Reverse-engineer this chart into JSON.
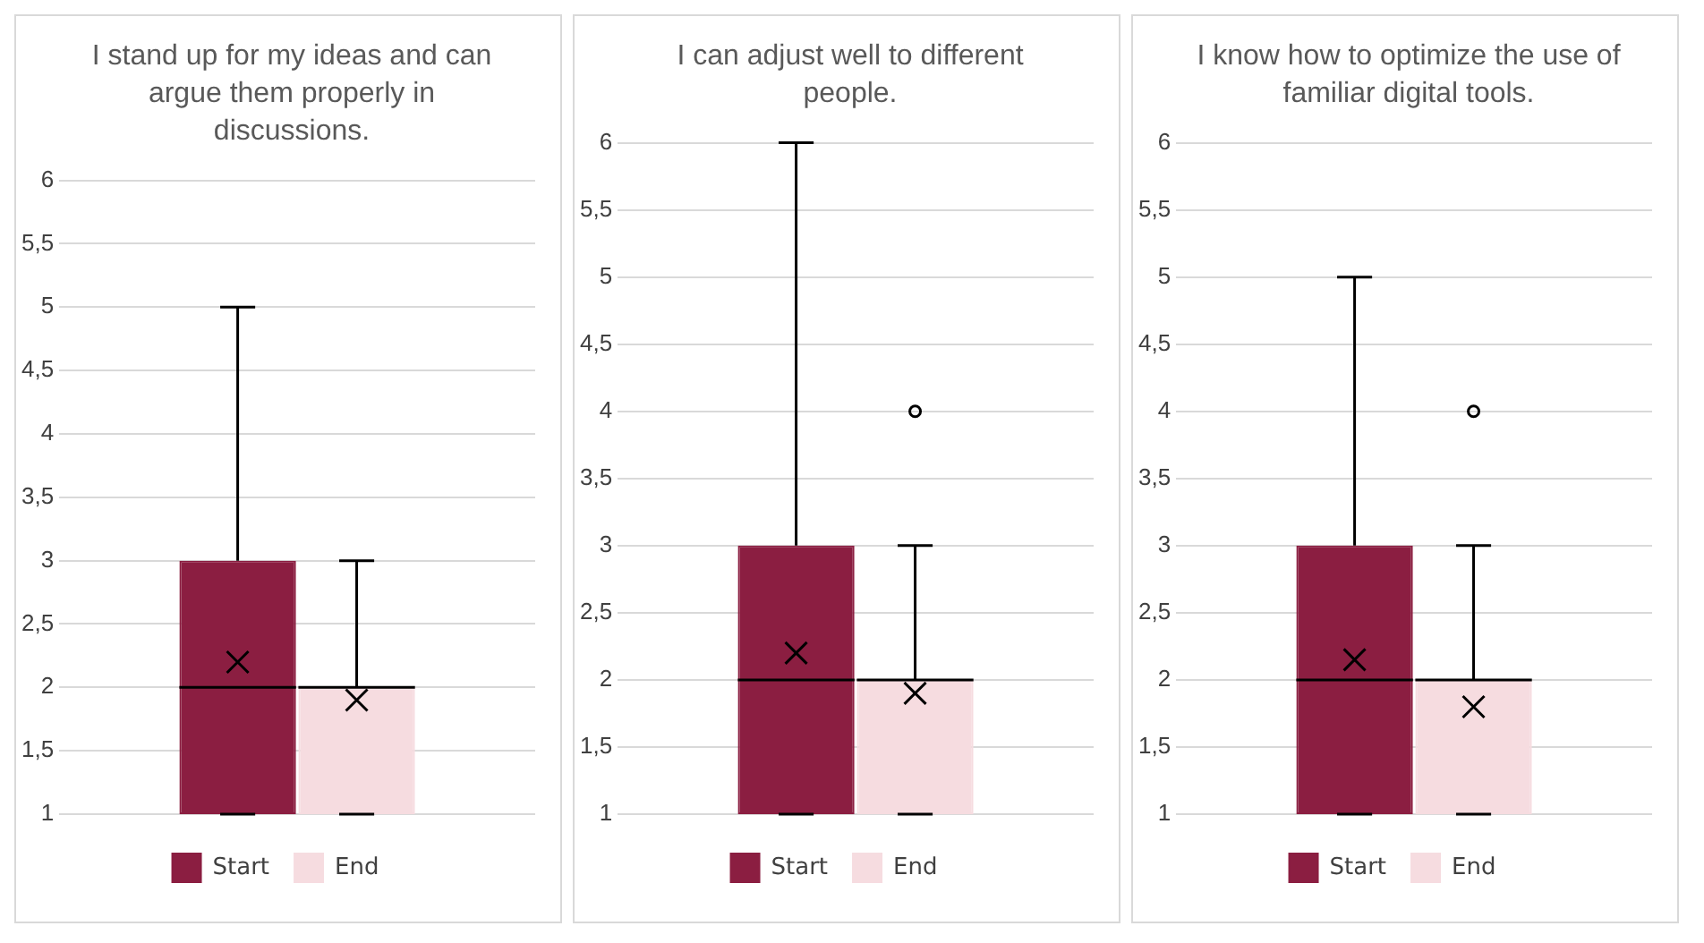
{
  "chart_data": [
    {
      "type": "box",
      "title": "I stand up for my ideas and can argue them properly in discussions.",
      "categories": [
        null
      ],
      "ylim": [
        1,
        6
      ],
      "yticks": [
        1,
        {
          "value": 1.5,
          "label": "1,5"
        },
        2,
        {
          "value": 2.5,
          "label": "2,5"
        },
        3,
        {
          "value": 3.5,
          "label": "3,5"
        },
        4,
        {
          "value": 4.5,
          "label": "4,5"
        },
        5,
        {
          "value": 5.5,
          "label": "5,5"
        },
        6
      ],
      "grid": "y",
      "legend": "bottom",
      "tick_labels": "y",
      "series": [
        {
          "name": "Start",
          "color": "#8b1e41",
          "boxes": [
            {
              "low": 1,
              "q1": 1,
              "median": 2,
              "q3": 3,
              "high": 5,
              "mean": 2.2
            }
          ]
        },
        {
          "name": "End",
          "color": "#f6dce0",
          "boxes": [
            {
              "low": 1,
              "q1": 1,
              "median": 2,
              "q3": 2,
              "high": 3,
              "mean": 1.9
            }
          ]
        }
      ]
    },
    {
      "type": "box",
      "title": "I can adjust well to different people.",
      "categories": [
        null
      ],
      "ylim": [
        1,
        6
      ],
      "yticks": [
        1,
        {
          "value": 1.5,
          "label": "1,5"
        },
        2,
        {
          "value": 2.5,
          "label": "2,5"
        },
        3,
        {
          "value": 3.5,
          "label": "3,5"
        },
        4,
        {
          "value": 4.5,
          "label": "4,5"
        },
        5,
        {
          "value": 5.5,
          "label": "5,5"
        },
        6
      ],
      "grid": "y",
      "legend": "bottom",
      "tick_labels": "y",
      "series": [
        {
          "name": "Start",
          "color": "#8b1e41",
          "boxes": [
            {
              "low": 1,
              "q1": 1,
              "median": 2,
              "q3": 3,
              "high": 6,
              "mean": 2.2
            }
          ]
        },
        {
          "name": "End",
          "color": "#f6dce0",
          "boxes": [
            {
              "low": 1,
              "q1": 1,
              "median": 2,
              "q3": 2,
              "high": 3,
              "mean": 1.9,
              "outliers": [
                4
              ]
            }
          ]
        }
      ]
    },
    {
      "type": "box",
      "title": "I know how to optimize the use of familiar digital tools.",
      "categories": [
        null
      ],
      "ylim": [
        1,
        6
      ],
      "yticks": [
        1,
        {
          "value": 1.5,
          "label": "1,5"
        },
        2,
        {
          "value": 2.5,
          "label": "2,5"
        },
        3,
        {
          "value": 3.5,
          "label": "3,5"
        },
        4,
        {
          "value": 4.5,
          "label": "4,5"
        },
        5,
        {
          "value": 5.5,
          "label": "5,5"
        },
        6
      ],
      "grid": "y",
      "legend": "bottom",
      "tick_labels": "y",
      "series": [
        {
          "name": "Start",
          "color": "#8b1e41",
          "boxes": [
            {
              "low": 1,
              "q1": 1,
              "median": 2,
              "q3": 3,
              "high": 5,
              "mean": 2.15
            }
          ]
        },
        {
          "name": "End",
          "color": "#f6dce0",
          "boxes": [
            {
              "low": 1,
              "q1": 1,
              "median": 2,
              "q3": 2,
              "high": 3,
              "mean": 1.8,
              "outliers": [
                4
              ]
            }
          ]
        }
      ]
    }
  ]
}
